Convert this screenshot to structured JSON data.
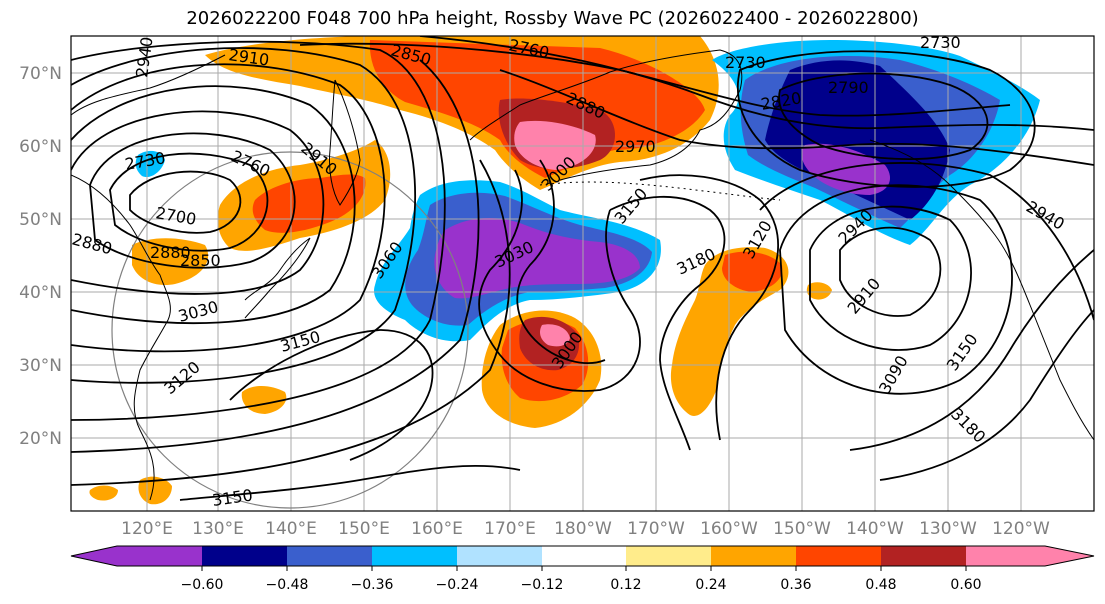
{
  "title": "2026022200 F048 700 hPa height, Rossby Wave PC (2026022400 - 2026022800)",
  "lat_labels": [
    "70°N",
    "60°N",
    "50°N",
    "40°N",
    "30°N",
    "20°N"
  ],
  "lon_labels": [
    "120°E",
    "130°E",
    "140°E",
    "150°E",
    "160°E",
    "170°E",
    "180°W",
    "170°W",
    "160°W",
    "150°W",
    "140°W",
    "130°W",
    "120°W"
  ],
  "contour_labels": [
    "2940",
    "2910",
    "2850",
    "2760",
    "2730",
    "2730",
    "2790",
    "2820",
    "2880",
    "2970",
    "2730",
    "2760",
    "2910",
    "2700",
    "2880",
    "2880",
    "2850",
    "3060",
    "3000",
    "3030",
    "3150",
    "3180",
    "3120",
    "2940",
    "2910",
    "2940",
    "3030",
    "3150",
    "3120",
    "3000",
    "3090",
    "3150",
    "3180",
    "3150"
  ],
  "colorbar": {
    "colors": [
      "#9932cc",
      "#00008b",
      "#3a5fcd",
      "#00bfff",
      "#b0e2ff",
      "#ffffff",
      "#ffec8b",
      "#ffa500",
      "#ff4500",
      "#b22222",
      "#ff82ab"
    ],
    "tick_labels": [
      "−0.60",
      "−0.48",
      "−0.36",
      "−0.24",
      "−0.12",
      "0.12",
      "0.24",
      "0.36",
      "0.48",
      "0.60"
    ]
  },
  "field_colors": {
    "coast": "#000000",
    "contour": "#000000",
    "grid": "#aaaaaa",
    "circle": "#808080"
  }
}
